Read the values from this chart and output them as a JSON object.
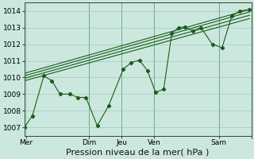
{
  "background_color": "#cce8de",
  "grid_color": "#99ccbb",
  "line_color": "#1a5c1a",
  "xlim": [
    0,
    7.0
  ],
  "ylim": [
    1006.5,
    1014.5
  ],
  "yticks": [
    1007,
    1008,
    1009,
    1010,
    1011,
    1012,
    1013,
    1014
  ],
  "xtick_positions": [
    0.05,
    2.0,
    3.0,
    4.0,
    6.0,
    7.0
  ],
  "xtick_labels": [
    "Mer",
    "Dim",
    "Jeu",
    "Ven",
    "Sam",
    ""
  ],
  "xlabel": "Pression niveau de la mer( hPa )",
  "main_line": [
    [
      0.0,
      1007.0
    ],
    [
      0.25,
      1007.7
    ],
    [
      0.6,
      1010.1
    ],
    [
      0.85,
      1009.8
    ],
    [
      1.1,
      1009.0
    ],
    [
      1.4,
      1009.0
    ],
    [
      1.65,
      1008.8
    ],
    [
      1.9,
      1008.8
    ],
    [
      2.25,
      1007.1
    ],
    [
      2.6,
      1008.3
    ],
    [
      3.05,
      1010.5
    ],
    [
      3.3,
      1010.9
    ],
    [
      3.55,
      1011.05
    ],
    [
      3.8,
      1010.4
    ],
    [
      4.05,
      1009.1
    ],
    [
      4.3,
      1009.3
    ],
    [
      4.55,
      1012.65
    ],
    [
      4.75,
      1013.0
    ],
    [
      4.95,
      1013.05
    ],
    [
      5.2,
      1012.8
    ],
    [
      5.45,
      1013.0
    ],
    [
      5.8,
      1012.0
    ],
    [
      6.1,
      1011.8
    ],
    [
      6.4,
      1013.7
    ],
    [
      6.65,
      1014.0
    ],
    [
      6.95,
      1014.1
    ]
  ],
  "trend_lines": [
    [
      [
        0.0,
        1009.8
      ],
      [
        6.95,
        1013.55
      ]
    ],
    [
      [
        0.0,
        1009.95
      ],
      [
        6.95,
        1013.75
      ]
    ],
    [
      [
        0.0,
        1010.1
      ],
      [
        6.95,
        1013.95
      ]
    ],
    [
      [
        0.0,
        1010.25
      ],
      [
        6.95,
        1014.1
      ]
    ]
  ],
  "vlines": [
    2.0,
    3.0,
    4.0,
    6.0
  ],
  "tick_fontsize": 6.5,
  "xlabel_fontsize": 8
}
